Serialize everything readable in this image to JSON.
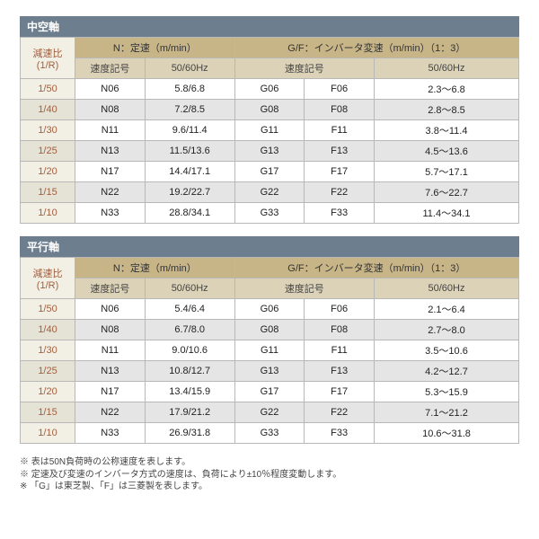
{
  "sections": [
    {
      "title": "中空軸",
      "header": {
        "ratio": "減速比\n(1/R)",
        "n_group": "N：定速（m/min）",
        "n_sub1": "速度記号",
        "n_sub2": "50/60Hz",
        "gf_group": "G/F：インバータ変速（m/min）（1：3）",
        "gf_sub1": "速度記号",
        "gf_sub2": "50/60Hz"
      },
      "rows": [
        {
          "ratio": "1/50",
          "n_code": "N06",
          "n_val": "5.8/6.8",
          "g": "G06",
          "f": "F06",
          "gf_val": "2.3～6.8"
        },
        {
          "ratio": "1/40",
          "n_code": "N08",
          "n_val": "7.2/8.5",
          "g": "G08",
          "f": "F08",
          "gf_val": "2.8～8.5"
        },
        {
          "ratio": "1/30",
          "n_code": "N11",
          "n_val": "9.6/11.4",
          "g": "G11",
          "f": "F11",
          "gf_val": "3.8～11.4"
        },
        {
          "ratio": "1/25",
          "n_code": "N13",
          "n_val": "11.5/13.6",
          "g": "G13",
          "f": "F13",
          "gf_val": "4.5～13.6"
        },
        {
          "ratio": "1/20",
          "n_code": "N17",
          "n_val": "14.4/17.1",
          "g": "G17",
          "f": "F17",
          "gf_val": "5.7～17.1"
        },
        {
          "ratio": "1/15",
          "n_code": "N22",
          "n_val": "19.2/22.7",
          "g": "G22",
          "f": "F22",
          "gf_val": "7.6～22.7"
        },
        {
          "ratio": "1/10",
          "n_code": "N33",
          "n_val": "28.8/34.1",
          "g": "G33",
          "f": "F33",
          "gf_val": "11.4～34.1"
        }
      ]
    },
    {
      "title": "平行軸",
      "header": {
        "ratio": "減速比\n(1/R)",
        "n_group": "N：定速（m/min）",
        "n_sub1": "速度記号",
        "n_sub2": "50/60Hz",
        "gf_group": "G/F：インバータ変速（m/min）（1：3）",
        "gf_sub1": "速度記号",
        "gf_sub2": "50/60Hz"
      },
      "rows": [
        {
          "ratio": "1/50",
          "n_code": "N06",
          "n_val": "5.4/6.4",
          "g": "G06",
          "f": "F06",
          "gf_val": "2.1～6.4"
        },
        {
          "ratio": "1/40",
          "n_code": "N08",
          "n_val": "6.7/8.0",
          "g": "G08",
          "f": "F08",
          "gf_val": "2.7～8.0"
        },
        {
          "ratio": "1/30",
          "n_code": "N11",
          "n_val": "9.0/10.6",
          "g": "G11",
          "f": "F11",
          "gf_val": "3.5～10.6"
        },
        {
          "ratio": "1/25",
          "n_code": "N13",
          "n_val": "10.8/12.7",
          "g": "G13",
          "f": "F13",
          "gf_val": "4.2～12.7"
        },
        {
          "ratio": "1/20",
          "n_code": "N17",
          "n_val": "13.4/15.9",
          "g": "G17",
          "f": "F17",
          "gf_val": "5.3～15.9"
        },
        {
          "ratio": "1/15",
          "n_code": "N22",
          "n_val": "17.9/21.2",
          "g": "G22",
          "f": "F22",
          "gf_val": "7.1～21.2"
        },
        {
          "ratio": "1/10",
          "n_code": "N33",
          "n_val": "26.9/31.8",
          "g": "G33",
          "f": "F33",
          "gf_val": "10.6～31.8"
        }
      ]
    }
  ],
  "notes": [
    "※ 表は50N負荷時の公称速度を表します。",
    "※ 定速及び変速のインバータ方式の速度は、負荷により±10％程度変動します。",
    "※ 「G」は東芝製、「F」は三菱製を表します。"
  ],
  "style": {
    "title_bg": "#6d7f8f",
    "hdr_top_bg": "#c7b588",
    "hdr_sub_bg": "#dcd2b8",
    "ratio_bg": "#f2efe5",
    "alt_bg": "#e5e5e5",
    "border": "#b8b8b8"
  }
}
